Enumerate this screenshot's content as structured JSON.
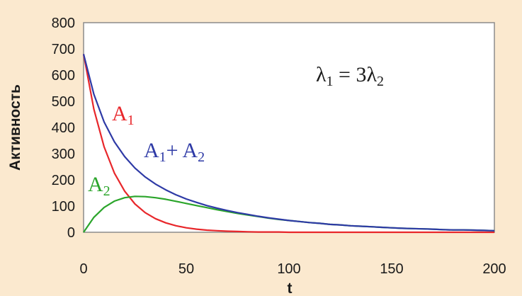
{
  "chart_data": {
    "type": "line",
    "xlabel": "t",
    "ylabel": "Активность",
    "xlim": [
      0,
      200
    ],
    "ylim": [
      0,
      800
    ],
    "x_ticks": [
      0,
      50,
      100,
      150,
      200
    ],
    "y_ticks": [
      0,
      100,
      200,
      300,
      400,
      500,
      600,
      700,
      800
    ],
    "grid": false,
    "annotation": {
      "main": "λ",
      "sub": "1",
      "eq": " = 3",
      "main2": "λ",
      "sub2": "2"
    },
    "x": [
      0,
      5,
      10,
      15,
      20,
      25,
      30,
      35,
      40,
      45,
      50,
      55,
      60,
      65,
      70,
      75,
      80,
      85,
      90,
      95,
      100,
      105,
      110,
      115,
      120,
      125,
      130,
      135,
      140,
      145,
      150,
      155,
      160,
      165,
      170,
      175,
      180,
      185,
      190,
      195,
      200
    ],
    "series": [
      {
        "label_main": "A",
        "label_sub": "1",
        "color": "#e8272b",
        "values": [
          680,
          470,
          326,
          226,
          157,
          108,
          75,
          52,
          36,
          25,
          17,
          12,
          8,
          6,
          4,
          3,
          2,
          1,
          1,
          1,
          0,
          0,
          0,
          0,
          0,
          0,
          0,
          0,
          0,
          0,
          0,
          0,
          0,
          0,
          0,
          0,
          0,
          0,
          0,
          0,
          0
        ]
      },
      {
        "label_main": "A",
        "label_sub": "2",
        "color": "#2ba52b",
        "values": [
          0,
          57,
          95,
          119,
          132,
          137,
          136,
          132,
          126,
          118,
          110,
          102,
          94,
          86,
          79,
          72,
          66,
          60,
          54,
          49,
          45,
          41,
          37,
          34,
          30,
          28,
          25,
          23,
          21,
          19,
          17,
          15,
          14,
          13,
          12,
          10,
          9,
          9,
          8,
          7,
          6
        ]
      },
      {
        "label_main": "A",
        "label_sub": "1",
        "label_plus": "+ ",
        "label_main2": "A",
        "label_sub2": "2",
        "color": "#2e3aa6",
        "values": [
          680,
          527,
          421,
          345,
          289,
          245,
          211,
          184,
          162,
          143,
          127,
          114,
          102,
          92,
          83,
          75,
          68,
          61,
          55,
          50,
          45,
          41,
          37,
          34,
          30,
          28,
          25,
          23,
          21,
          19,
          17,
          15,
          14,
          13,
          12,
          10,
          9,
          9,
          8,
          7,
          6
        ]
      }
    ]
  }
}
